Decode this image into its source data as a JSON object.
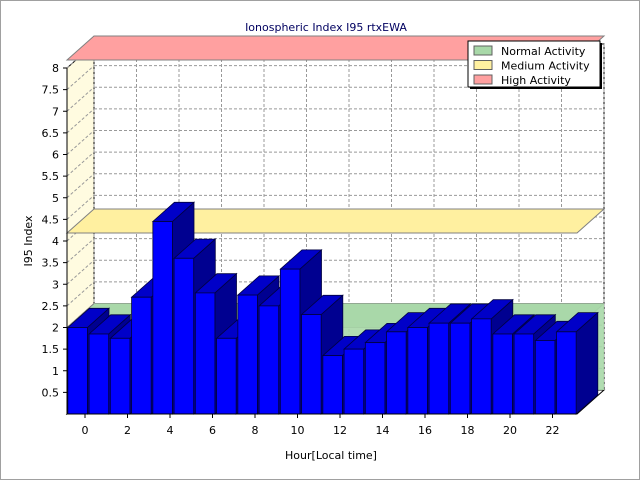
{
  "chart_data": {
    "type": "bar",
    "title": "Ionospheric Index I95 rtxEWA",
    "xlabel": "Hour[Local time]",
    "ylabel": "I95 Index",
    "ylim": [
      0,
      8
    ],
    "y_ticks": [
      "0.5",
      "1",
      "1.5",
      "2",
      "2.5",
      "3",
      "3.5",
      "4",
      "4.5",
      "5",
      "5.5",
      "6",
      "6.5",
      "7",
      "7.5",
      "8"
    ],
    "x_ticks": [
      "0",
      "2",
      "4",
      "6",
      "8",
      "10",
      "12",
      "14",
      "16",
      "18",
      "20",
      "22"
    ],
    "categories": [
      0,
      1,
      2,
      3,
      4,
      5,
      6,
      7,
      8,
      9,
      10,
      11,
      12,
      13,
      14,
      15,
      16,
      17,
      18,
      19,
      20,
      21,
      22,
      23
    ],
    "series": [
      {
        "values": [
          2.0,
          1.85,
          1.75,
          2.7,
          4.45,
          3.6,
          2.8,
          1.75,
          2.75,
          2.5,
          3.35,
          2.3,
          1.35,
          1.5,
          1.65,
          1.9,
          2.0,
          2.1,
          2.1,
          2.2,
          1.85,
          1.85,
          1.7,
          1.9
        ],
        "color": "#0000ff"
      }
    ],
    "bands": [
      {
        "name": "Normal Activity",
        "from": 0,
        "to": 2.0,
        "color": "#a8d8a8"
      },
      {
        "name": "Medium Activity",
        "from": 4.0,
        "to": 4.0,
        "color": "#fff0a0"
      },
      {
        "name": "High Activity",
        "from": 8.0,
        "to": 8.0,
        "color": "#ffa0a0"
      }
    ],
    "legend": {
      "position": "top-right",
      "entries": [
        "Normal Activity",
        "Medium Activity",
        "High Activity"
      ]
    },
    "grid": true
  }
}
